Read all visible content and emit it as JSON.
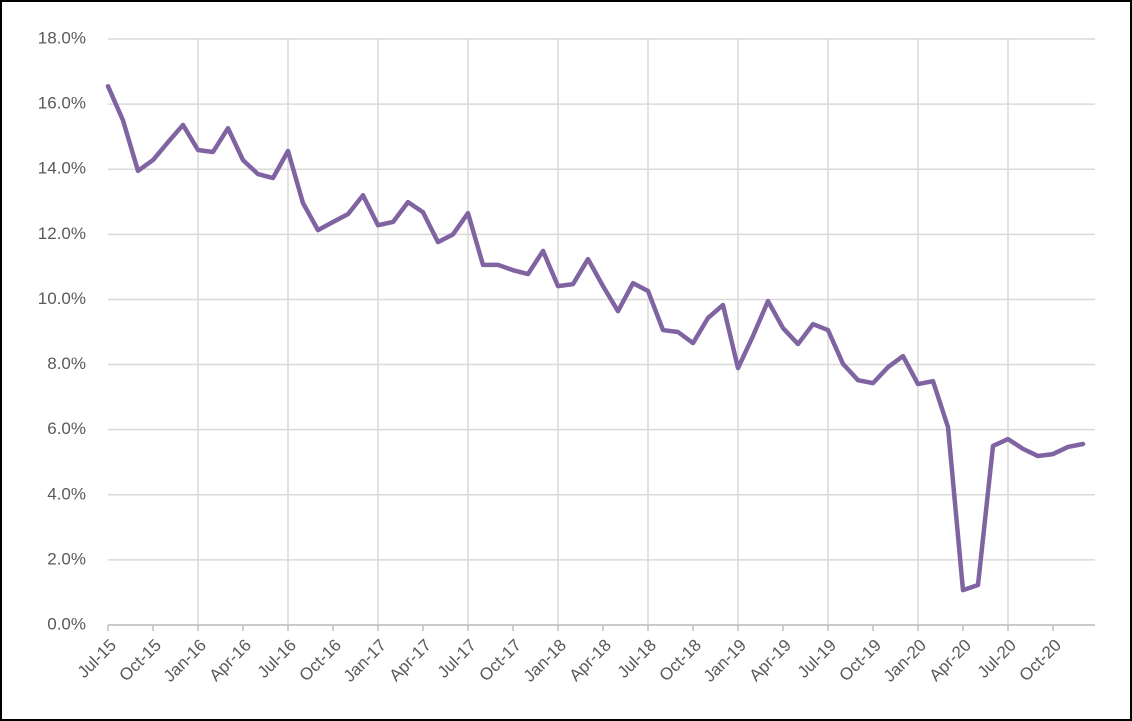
{
  "chart_data": {
    "type": "line",
    "categories": [
      "Jul-15",
      null,
      null,
      "Oct-15",
      null,
      null,
      "Jan-16",
      null,
      null,
      "Apr-16",
      null,
      null,
      "Jul-16",
      null,
      null,
      "Oct-16",
      null,
      null,
      "Jan-17",
      null,
      null,
      "Apr-17",
      null,
      null,
      "Jul-17",
      null,
      null,
      "Oct-17",
      null,
      null,
      "Jan-18",
      null,
      null,
      "Apr-18",
      null,
      null,
      "Jul-18",
      null,
      null,
      "Oct-18",
      null,
      null,
      "Jan-19",
      null,
      null,
      "Apr-19",
      null,
      null,
      "Jul-19",
      null,
      null,
      "Oct-19",
      null,
      null,
      "Jan-20",
      null,
      null,
      "Apr-20",
      null,
      null,
      "Jul-20",
      null,
      null,
      "Oct-20",
      null,
      null
    ],
    "series": [
      {
        "color": "#8064a2",
        "values": [
          16.55,
          15.5,
          13.95,
          14.28,
          14.83,
          15.36,
          14.59,
          14.53,
          15.26,
          14.28,
          13.85,
          13.73,
          14.56,
          12.96,
          12.13,
          12.38,
          12.62,
          13.2,
          12.28,
          12.38,
          12.99,
          12.68,
          11.76,
          12.0,
          12.65,
          11.06,
          11.06,
          10.9,
          10.78,
          11.49,
          10.41,
          10.47,
          11.24,
          10.41,
          9.64,
          10.5,
          10.26,
          9.06,
          9.0,
          8.66,
          9.43,
          9.83,
          7.89,
          8.88,
          9.95,
          9.12,
          8.63,
          9.24,
          9.06,
          8.02,
          7.52,
          7.43,
          7.92,
          8.26,
          7.4,
          7.49,
          6.08,
          1.07,
          1.23,
          5.5,
          5.71,
          5.41,
          5.19,
          5.25,
          5.47,
          5.56
        ]
      }
    ],
    "ylim": [
      0,
      18
    ],
    "yticks": [
      {
        "value": 0,
        "label": "0.0%"
      },
      {
        "value": 2,
        "label": "2.0%"
      },
      {
        "value": 4,
        "label": "4.0%"
      },
      {
        "value": 6,
        "label": "6.0%"
      },
      {
        "value": 8,
        "label": "8.0%"
      },
      {
        "value": 10,
        "label": "10.0%"
      },
      {
        "value": 12,
        "label": "12.0%"
      },
      {
        "value": 14,
        "label": "14.0%"
      },
      {
        "value": 16,
        "label": "16.0%"
      },
      {
        "value": 18,
        "label": "18.0%"
      }
    ],
    "grid": true
  }
}
